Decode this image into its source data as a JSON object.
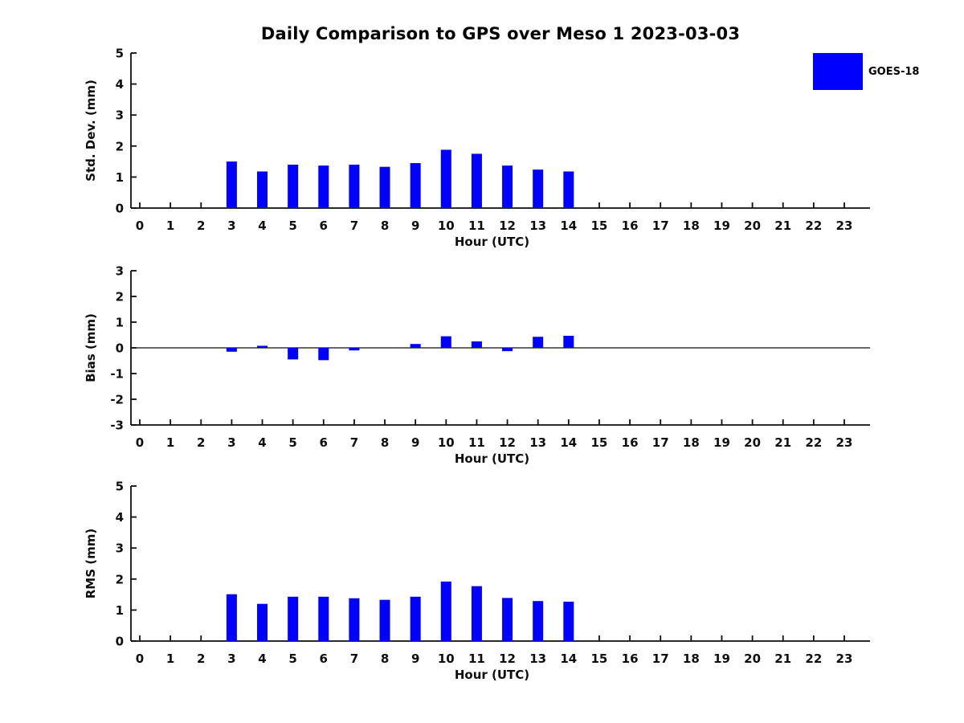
{
  "figure": {
    "title": "Daily Comparison to GPS over Meso 1 2023-03-03",
    "legend": {
      "label": "GOES-18",
      "color": "#0000ff"
    }
  },
  "chart_data": [
    {
      "type": "bar",
      "name": "std-dev",
      "ylabel": "Std. Dev. (mm)",
      "xlabel": "Hour (UTC)",
      "ylim": [
        0,
        5
      ],
      "yticks": [
        0,
        1,
        2,
        3,
        4,
        5
      ],
      "grid": false,
      "categories": [
        0,
        1,
        2,
        3,
        4,
        5,
        6,
        7,
        8,
        9,
        10,
        11,
        12,
        13,
        14,
        15,
        16,
        17,
        18,
        19,
        20,
        21,
        22,
        23
      ],
      "series": [
        {
          "name": "GOES-18",
          "color": "#0000ff",
          "values": [
            null,
            null,
            null,
            1.5,
            1.18,
            1.4,
            1.37,
            1.4,
            1.33,
            1.45,
            1.88,
            1.75,
            1.37,
            1.24,
            1.18,
            null,
            null,
            null,
            null,
            null,
            null,
            null,
            null,
            null
          ]
        }
      ]
    },
    {
      "type": "bar",
      "name": "bias",
      "ylabel": "Bias (mm)",
      "xlabel": "Hour (UTC)",
      "ylim": [
        -3,
        3
      ],
      "yticks": [
        -3,
        -2,
        -1,
        0,
        1,
        2,
        3
      ],
      "zero_line": true,
      "grid": false,
      "categories": [
        0,
        1,
        2,
        3,
        4,
        5,
        6,
        7,
        8,
        9,
        10,
        11,
        12,
        13,
        14,
        15,
        16,
        17,
        18,
        19,
        20,
        21,
        22,
        23
      ],
      "series": [
        {
          "name": "GOES-18",
          "color": "#0000ff",
          "values": [
            null,
            null,
            null,
            -0.15,
            0.08,
            -0.45,
            -0.48,
            -0.1,
            0.0,
            0.15,
            0.45,
            0.25,
            -0.13,
            0.43,
            0.47,
            null,
            null,
            null,
            null,
            null,
            null,
            null,
            null,
            null
          ]
        }
      ]
    },
    {
      "type": "bar",
      "name": "rms",
      "ylabel": "RMS (mm)",
      "xlabel": "Hour (UTC)",
      "ylim": [
        0,
        5
      ],
      "yticks": [
        0,
        1,
        2,
        3,
        4,
        5
      ],
      "grid": false,
      "categories": [
        0,
        1,
        2,
        3,
        4,
        5,
        6,
        7,
        8,
        9,
        10,
        11,
        12,
        13,
        14,
        15,
        16,
        17,
        18,
        19,
        20,
        21,
        22,
        23
      ],
      "series": [
        {
          "name": "GOES-18",
          "color": "#0000ff",
          "values": [
            null,
            null,
            null,
            1.51,
            1.2,
            1.43,
            1.43,
            1.38,
            1.33,
            1.43,
            1.92,
            1.77,
            1.39,
            1.29,
            1.27,
            null,
            null,
            null,
            null,
            null,
            null,
            null,
            null,
            null
          ]
        }
      ]
    }
  ]
}
